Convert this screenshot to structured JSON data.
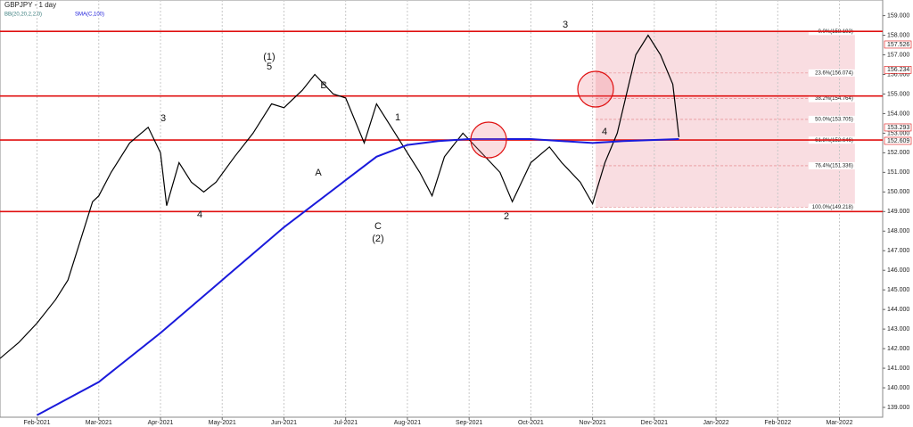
{
  "chart_data": {
    "type": "line",
    "title": "GBPJPY - 1 day",
    "indicators": [
      "BB(20,20,2,2.0)",
      "SMA(C,100)"
    ],
    "xlim": [
      -0.6,
      13.7
    ],
    "xticks": [
      {
        "value": 0,
        "label": "Feb-2021"
      },
      {
        "value": 1,
        "label": "Mar-2021"
      },
      {
        "value": 2,
        "label": "Apr-2021"
      },
      {
        "value": 3,
        "label": "May-2021"
      },
      {
        "value": 4,
        "label": "Jun-2021"
      },
      {
        "value": 5,
        "label": "Jul-2021"
      },
      {
        "value": 6,
        "label": "Aug-2021"
      },
      {
        "value": 7,
        "label": "Sep-2021"
      },
      {
        "value": 8,
        "label": "Oct-2021"
      },
      {
        "value": 9,
        "label": "Nov-2021"
      },
      {
        "value": 10,
        "label": "Dec-2021"
      },
      {
        "value": 11,
        "label": "Jan-2022"
      },
      {
        "value": 12,
        "label": "Feb-2022"
      },
      {
        "value": 13,
        "label": "Mar-2022"
      }
    ],
    "ylim": [
      138.5,
      159.8
    ],
    "yticks": [
      {
        "value": 139,
        "label": "139.000"
      },
      {
        "value": 140,
        "label": "140.000"
      },
      {
        "value": 141,
        "label": "141.000"
      },
      {
        "value": 142,
        "label": "142.000"
      },
      {
        "value": 143,
        "label": "143.000"
      },
      {
        "value": 144,
        "label": "144.000"
      },
      {
        "value": 145,
        "label": "145.000"
      },
      {
        "value": 146,
        "label": "146.000"
      },
      {
        "value": 147,
        "label": "147.000"
      },
      {
        "value": 148,
        "label": "148.000"
      },
      {
        "value": 149,
        "label": "149.000"
      },
      {
        "value": 150,
        "label": "150.000"
      },
      {
        "value": 151,
        "label": "151.000"
      },
      {
        "value": 152,
        "label": "152.000"
      },
      {
        "value": 153,
        "label": "153.000"
      },
      {
        "value": 154,
        "label": "154.000"
      },
      {
        "value": 155,
        "label": "155.000"
      },
      {
        "value": 156,
        "label": "156.000"
      },
      {
        "value": 157,
        "label": "157.000"
      },
      {
        "value": 158,
        "label": "158.000"
      },
      {
        "value": 159,
        "label": "159.000"
      }
    ],
    "series": [
      {
        "name": "GBPJPY",
        "color": "#000000",
        "x": [
          -0.6,
          -0.3,
          0,
          0.3,
          0.5,
          0.7,
          0.9,
          1.0,
          1.2,
          1.5,
          1.8,
          2.0,
          2.1,
          2.3,
          2.5,
          2.7,
          2.9,
          3.2,
          3.5,
          3.8,
          4.0,
          4.3,
          4.5,
          4.8,
          5.0,
          5.3,
          5.5,
          5.8,
          6.0,
          6.2,
          6.4,
          6.6,
          6.9,
          7.2,
          7.5,
          7.7,
          8.0,
          8.3,
          8.5,
          8.8,
          9.0,
          9.2,
          9.4,
          9.7,
          9.9,
          10.1,
          10.3,
          10.4
        ],
        "values": [
          141.5,
          142.3,
          143.3,
          144.5,
          145.5,
          147.5,
          149.5,
          149.8,
          151.0,
          152.5,
          153.3,
          152.0,
          149.3,
          151.5,
          150.5,
          150.0,
          150.5,
          151.8,
          153.0,
          154.5,
          154.3,
          155.2,
          156.0,
          155.0,
          154.8,
          152.5,
          154.5,
          153.0,
          152.0,
          151.0,
          149.8,
          151.8,
          153.0,
          152.0,
          151.0,
          149.5,
          151.5,
          152.3,
          151.5,
          150.5,
          149.4,
          151.5,
          153.0,
          157.0,
          158.0,
          157.0,
          155.5,
          152.8
        ]
      },
      {
        "name": "SMA(C,100)",
        "color": "#1a1adb",
        "x": [
          0,
          1,
          2,
          3,
          4,
          5,
          5.5,
          6,
          6.5,
          7,
          8,
          9,
          9.5,
          10.4
        ],
        "values": [
          138.6,
          140.3,
          142.8,
          145.5,
          148.2,
          150.6,
          151.8,
          152.4,
          152.6,
          152.7,
          152.7,
          152.5,
          152.6,
          152.7
        ]
      }
    ],
    "levels": [
      158.2,
      154.9,
      152.65,
      149.0
    ],
    "fib_levels": [
      {
        "value": 158.192,
        "label": "0.0%(158.192)"
      },
      {
        "value": 156.074,
        "label": "23.6%(156.074)"
      },
      {
        "value": 154.764,
        "label": "38.2%(154.764)"
      },
      {
        "value": 153.705,
        "label": "50.0%(153.705)"
      },
      {
        "value": 152.646,
        "label": "61.8%(152.646)"
      },
      {
        "value": 151.336,
        "label": "76.4%(151.336)"
      },
      {
        "value": 149.218,
        "label": "100.0%(149.218)"
      }
    ],
    "price_labels": [
      {
        "value": 157.526,
        "label": "157.526"
      },
      {
        "value": 156.234,
        "label": "156.234"
      },
      {
        "value": 153.293,
        "label": "153.293"
      },
      {
        "value": 152.609,
        "label": "152.609"
      }
    ],
    "annotations": [
      "3",
      "(1)",
      "5",
      "B",
      "A",
      "1",
      "C",
      "(2)",
      "2",
      "3",
      "4",
      "4"
    ]
  }
}
